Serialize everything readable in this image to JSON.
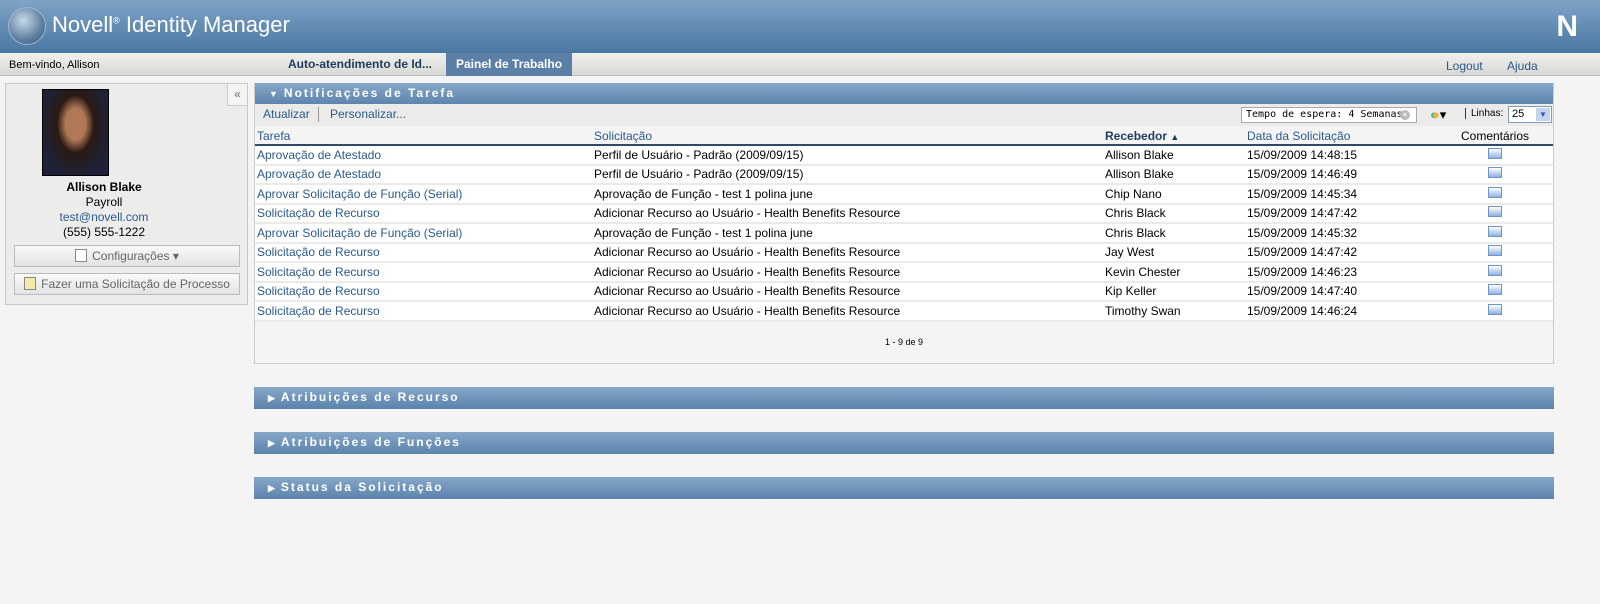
{
  "header": {
    "brand": "Novell",
    "title": "Identity Manager",
    "logo": "N"
  },
  "nav": {
    "welcome": "Bem-vindo, Allison",
    "tabs": [
      {
        "label": "Auto-atendimento de Id...",
        "active": false
      },
      {
        "label": "Painel de Trabalho",
        "active": true
      }
    ],
    "logout": "Logout",
    "help": "Ajuda"
  },
  "profile": {
    "name": "Allison Blake",
    "department": "Payroll",
    "email": "test@novell.com",
    "phone": "(555) 555-1222",
    "settings_label": "Configurações",
    "process_request_label": "Fazer uma Solicitação de Processo"
  },
  "tasks": {
    "title": "Notificações de Tarefa",
    "refresh": "Atualizar",
    "customize": "Personalizar...",
    "filter": "Tempo de espera: 4 Semanas",
    "rows_label": "Linhas:",
    "rows_value": "25",
    "columns": [
      "Tarefa",
      "Solicitação",
      "Recebedor",
      "Data da Solicitação",
      "Comentários"
    ],
    "rows": [
      [
        "Aprovação de Atestado",
        "Perfil de Usuário - Padrão (2009/09/15)",
        "Allison Blake",
        "15/09/2009 14:48:15"
      ],
      [
        "Aprovação de Atestado",
        "Perfil de Usuário - Padrão (2009/09/15)",
        "Allison Blake",
        "15/09/2009 14:46:49"
      ],
      [
        "Aprovar Solicitação de Função (Serial)",
        "Aprovação de Função - test 1 polina june",
        "Chip Nano",
        "15/09/2009 14:45:34"
      ],
      [
        "Solicitação de Recurso",
        "Adicionar Recurso ao Usuário - Health Benefits Resource",
        "Chris Black",
        "15/09/2009 14:47:42"
      ],
      [
        "Aprovar Solicitação de Função (Serial)",
        "Aprovação de Função - test 1 polina june",
        "Chris Black",
        "15/09/2009 14:45:32"
      ],
      [
        "Solicitação de Recurso",
        "Adicionar Recurso ao Usuário - Health Benefits Resource",
        "Jay West",
        "15/09/2009 14:47:42"
      ],
      [
        "Solicitação de Recurso",
        "Adicionar Recurso ao Usuário - Health Benefits Resource",
        "Kevin Chester",
        "15/09/2009 14:46:23"
      ],
      [
        "Solicitação de Recurso",
        "Adicionar Recurso ao Usuário - Health Benefits Resource",
        "Kip Keller",
        "15/09/2009 14:47:40"
      ],
      [
        "Solicitação de Recurso",
        "Adicionar Recurso ao Usuário - Health Benefits Resource",
        "Timothy Swan",
        "15/09/2009 14:46:24"
      ]
    ],
    "pagination": "1 - 9 de 9"
  },
  "sections": [
    "Atribuições de Recurso",
    "Atribuições de Funções",
    "Status da Solicitação"
  ]
}
